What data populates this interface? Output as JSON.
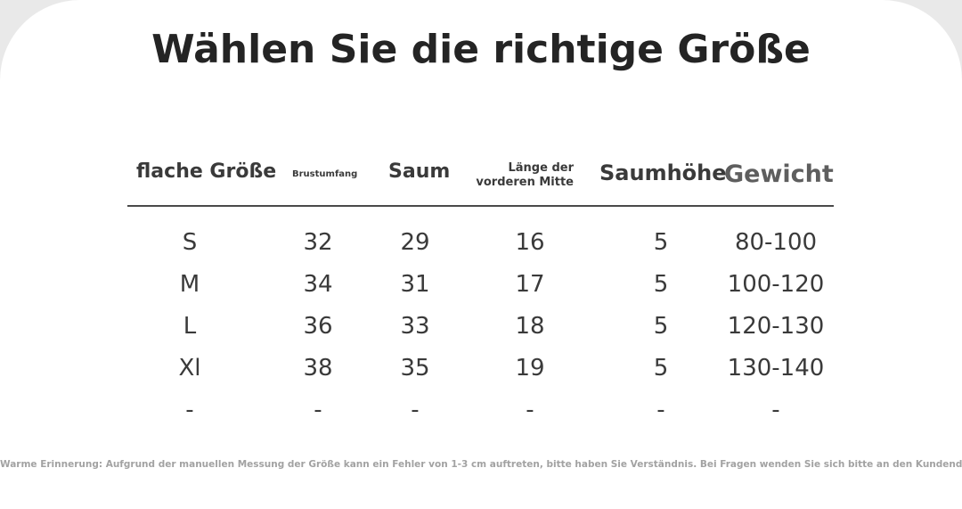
{
  "title": "Wählen Sie die richtige Größe",
  "headers": {
    "size": "flache Größe",
    "chest": "Brustumfang",
    "hem": "Saum",
    "front_length": "Länge der vorderen Mitte",
    "hem_height": "Saumhöhe",
    "weight": "Gewicht"
  },
  "rows": [
    {
      "size": "S",
      "chest": "32",
      "hem": "29",
      "front_length": "16",
      "hem_height": "5",
      "weight": "80-100"
    },
    {
      "size": "M",
      "chest": "34",
      "hem": "31",
      "front_length": "17",
      "hem_height": "5",
      "weight": "100-120"
    },
    {
      "size": "L",
      "chest": "36",
      "hem": "33",
      "front_length": "18",
      "hem_height": "5",
      "weight": "120-130"
    },
    {
      "size": "Xl",
      "chest": "38",
      "hem": "35",
      "front_length": "19",
      "hem_height": "5",
      "weight": "130-140"
    },
    {
      "size": "-",
      "chest": "-",
      "hem": "-",
      "front_length": "-",
      "hem_height": "-",
      "weight": "-"
    }
  ],
  "note": "Warme Erinnerung: Aufgrund der manuellen Messung der Größe kann ein Fehler von 1-3 cm auftreten, bitte haben Sie Verständnis. Bei Fragen wenden Sie sich bitte an den Kundendienst."
}
